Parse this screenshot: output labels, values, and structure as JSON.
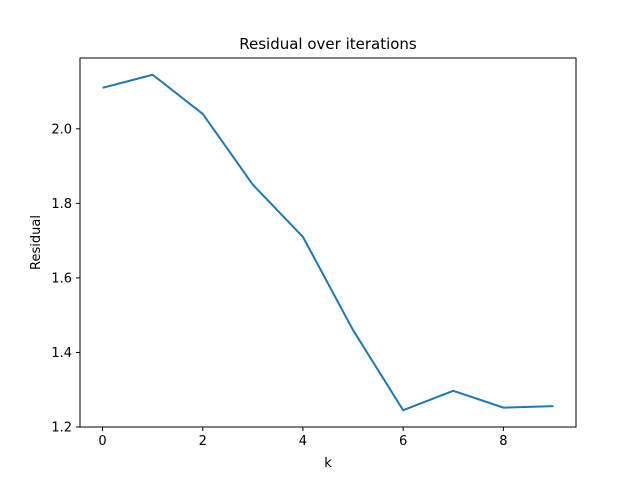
{
  "chart_data": {
    "type": "line",
    "title": "Residual over iterations",
    "xlabel": "k",
    "ylabel": "Residual",
    "x": [
      0,
      1,
      2,
      3,
      4,
      5,
      6,
      7,
      8,
      9
    ],
    "series": [
      {
        "values": [
          2.11,
          2.145,
          2.04,
          1.85,
          1.71,
          1.46,
          1.245,
          1.297,
          1.252,
          1.256
        ]
      }
    ],
    "xlim": [
      -0.45,
      9.45
    ],
    "ylim": [
      1.2,
      2.19
    ],
    "xticks": [
      0,
      2,
      4,
      6,
      8
    ],
    "yticks": [
      1.2,
      1.4,
      1.6,
      1.8,
      2.0
    ],
    "xtick_labels": [
      "0",
      "2",
      "4",
      "6",
      "8"
    ],
    "ytick_labels": [
      "1.2",
      "1.4",
      "1.6",
      "1.8",
      "2.0"
    ],
    "grid": false,
    "line_color": "#1f77b4"
  }
}
